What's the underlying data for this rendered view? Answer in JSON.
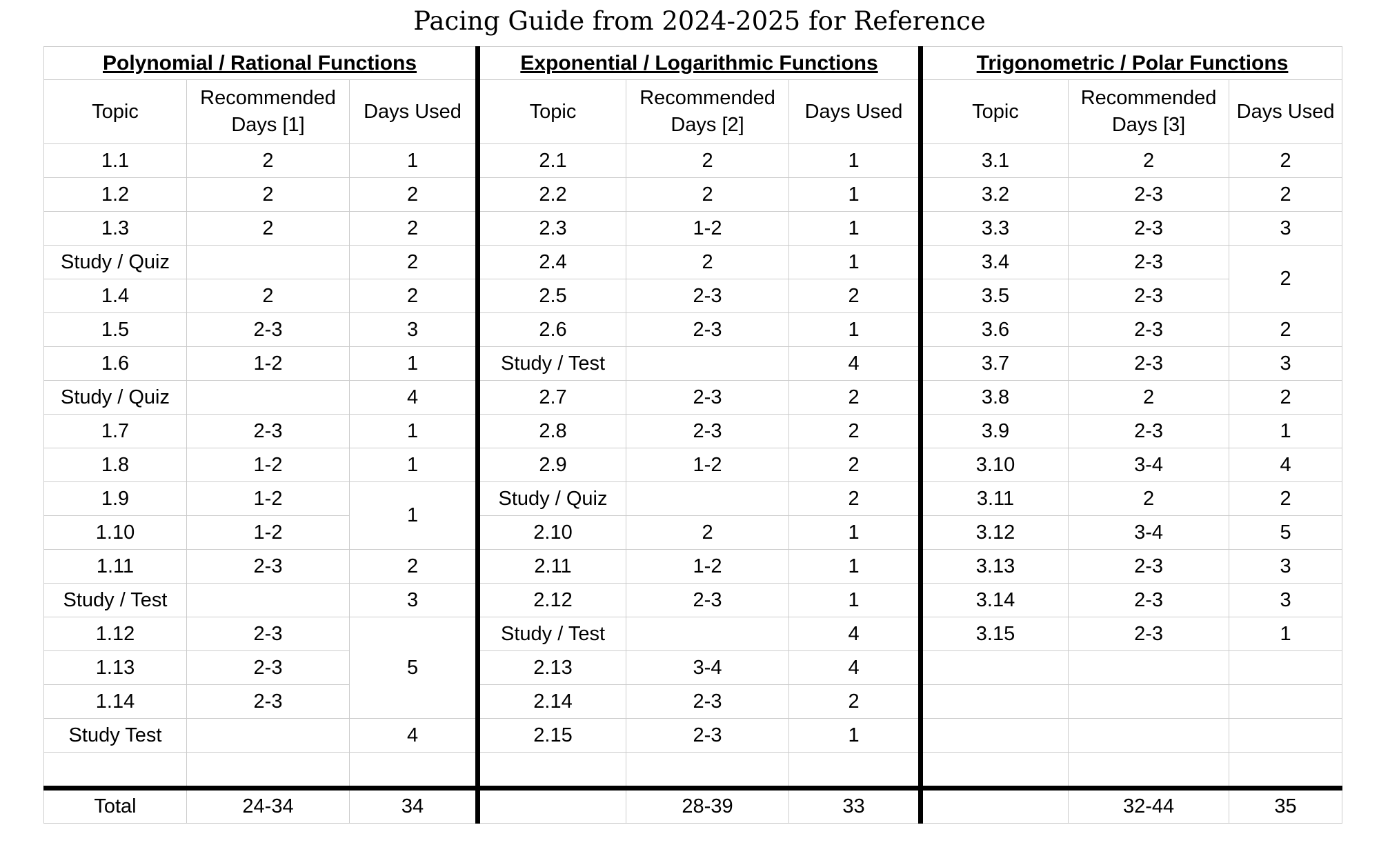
{
  "title": "Pacing Guide from 2024-2025 for Reference",
  "table": {
    "row_count": 19,
    "sections": [
      {
        "title": "Polynomial / Rational Functions",
        "headers": [
          "Topic",
          "Recommended Days [1]",
          "Days Used"
        ],
        "rows": [
          [
            "1.1",
            "2",
            "1"
          ],
          [
            "1.2",
            "2",
            "2"
          ],
          [
            "1.3",
            "2",
            "2"
          ],
          [
            "Study / Quiz",
            "",
            "2"
          ],
          [
            "1.4",
            "2",
            "2"
          ],
          [
            "1.5",
            "2-3",
            "3"
          ],
          [
            "1.6",
            "1-2",
            "1"
          ],
          [
            "Study / Quiz",
            "",
            "4"
          ],
          [
            "1.7",
            "2-3",
            "1"
          ],
          [
            "1.8",
            "1-2",
            "1"
          ],
          [
            "1.9",
            "1-2",
            {
              "v": "1",
              "span": 2
            }
          ],
          [
            "1.10",
            "1-2",
            "@covered"
          ],
          [
            "1.11",
            "2-3",
            "2"
          ],
          [
            "Study / Test",
            "",
            "3"
          ],
          [
            "1.12",
            "2-3",
            {
              "v": "5",
              "span": 3
            }
          ],
          [
            "1.13",
            "2-3",
            "@covered"
          ],
          [
            "1.14",
            "2-3",
            "@covered"
          ],
          [
            "Study Test",
            "",
            "4"
          ],
          [
            "",
            "",
            ""
          ]
        ],
        "total": [
          "Total",
          "24-34",
          "34"
        ]
      },
      {
        "title": "Exponential / Logarithmic Functions",
        "headers": [
          "Topic",
          "Recommended Days [2]",
          "Days Used"
        ],
        "rows": [
          [
            "2.1",
            "2",
            "1"
          ],
          [
            "2.2",
            "2",
            "1"
          ],
          [
            "2.3",
            "1-2",
            "1"
          ],
          [
            "2.4",
            "2",
            "1"
          ],
          [
            "2.5",
            "2-3",
            "2"
          ],
          [
            "2.6",
            "2-3",
            "1"
          ],
          [
            "Study / Test",
            "",
            "4"
          ],
          [
            "2.7",
            "2-3",
            "2"
          ],
          [
            "2.8",
            "2-3",
            "2"
          ],
          [
            "2.9",
            "1-2",
            "2"
          ],
          [
            "Study / Quiz",
            "",
            "2"
          ],
          [
            "2.10",
            "2",
            "1"
          ],
          [
            "2.11",
            "1-2",
            "1"
          ],
          [
            "2.12",
            "2-3",
            "1"
          ],
          [
            "Study / Test",
            "",
            "4"
          ],
          [
            "2.13",
            "3-4",
            "4"
          ],
          [
            "2.14",
            "2-3",
            "2"
          ],
          [
            "2.15",
            "2-3",
            "1"
          ],
          [
            "",
            "",
            ""
          ]
        ],
        "total": [
          "",
          "28-39",
          "33"
        ]
      },
      {
        "title": "Trigonometric / Polar Functions",
        "headers": [
          "Topic",
          "Recommended Days [3]",
          "Days Used"
        ],
        "rows": [
          [
            "3.1",
            "2",
            "2"
          ],
          [
            "3.2",
            "2-3",
            "2"
          ],
          [
            "3.3",
            "2-3",
            "3"
          ],
          [
            "3.4",
            "2-3",
            {
              "v": "2",
              "span": 2
            }
          ],
          [
            "3.5",
            "2-3",
            "@covered"
          ],
          [
            "3.6",
            "2-3",
            "2"
          ],
          [
            "3.7",
            "2-3",
            "3"
          ],
          [
            "3.8",
            "2",
            "2"
          ],
          [
            "3.9",
            "2-3",
            "1"
          ],
          [
            "3.10",
            "3-4",
            "4"
          ],
          [
            "3.11",
            "2",
            "2"
          ],
          [
            "3.12",
            "3-4",
            "5"
          ],
          [
            "3.13",
            "2-3",
            "3"
          ],
          [
            "3.14",
            "2-3",
            "3"
          ],
          [
            "3.15",
            "2-3",
            "1"
          ],
          [
            "",
            "",
            ""
          ],
          [
            "",
            "",
            ""
          ],
          [
            "",
            "",
            ""
          ],
          [
            "",
            "",
            ""
          ]
        ],
        "total": [
          "",
          "32-44",
          "35"
        ]
      }
    ]
  }
}
